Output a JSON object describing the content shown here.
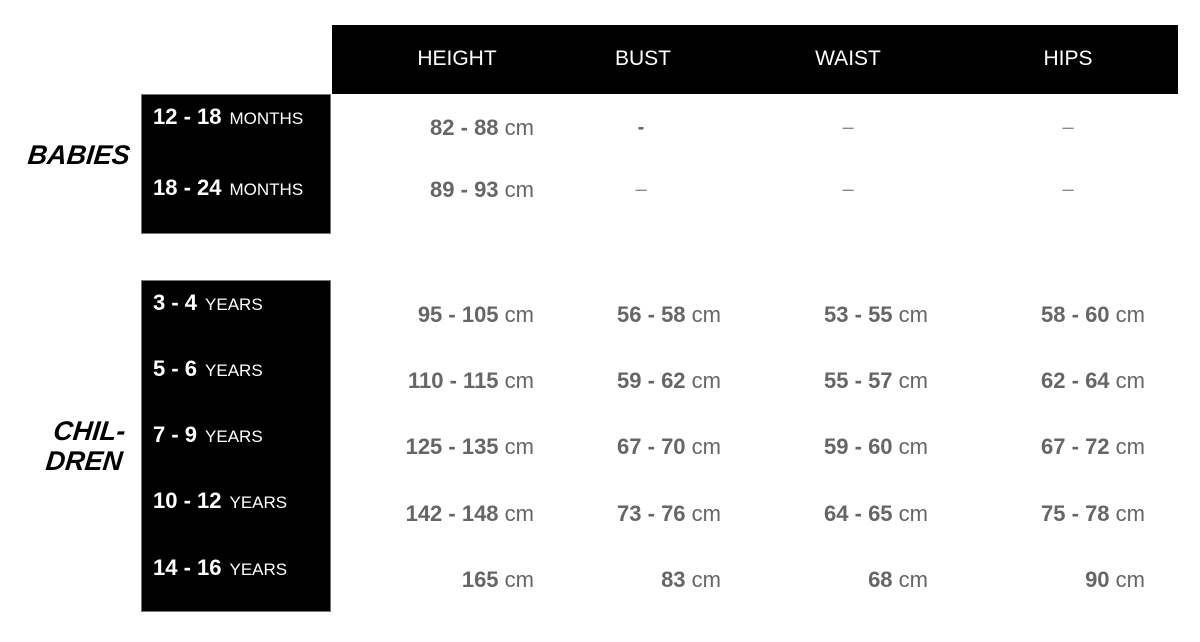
{
  "columns": [
    "HEIGHT",
    "BUST",
    "WAIST",
    "HIPS"
  ],
  "groups": {
    "babies": {
      "label": "BABIES",
      "rows": [
        {
          "range": "12 - 18",
          "unit": "MONTHS",
          "height": "82 - 88",
          "bust": "-",
          "waist": "–",
          "hips": "–"
        },
        {
          "range": "18 - 24",
          "unit": "MONTHS",
          "height": "89 - 93",
          "bust": "–",
          "waist": "–",
          "hips": "–"
        }
      ]
    },
    "children": {
      "label_line1": "CHIL-",
      "label_line2": "DREN",
      "rows": [
        {
          "range": "3 - 4",
          "unit": "YEARS",
          "height": "95 - 105",
          "bust": "56 - 58",
          "waist": "53 - 55",
          "hips": "58 - 60"
        },
        {
          "range": "5 - 6",
          "unit": "YEARS",
          "height": "110 - 115",
          "bust": "59 - 62",
          "waist": "55 - 57",
          "hips": "62 - 64"
        },
        {
          "range": "7 - 9",
          "unit": "YEARS",
          "height": "125 - 135",
          "bust": "67 - 70",
          "waist": "59 - 60",
          "hips": "67 - 72"
        },
        {
          "range": "10 - 12",
          "unit": "YEARS",
          "height": "142 - 148",
          "bust": "73 - 76",
          "waist": "64 - 65",
          "hips": "75 - 78"
        },
        {
          "range": "14 - 16",
          "unit": "YEARS",
          "height": "165",
          "bust": "83",
          "waist": "68",
          "hips": "90"
        }
      ]
    }
  },
  "unit": "cm"
}
